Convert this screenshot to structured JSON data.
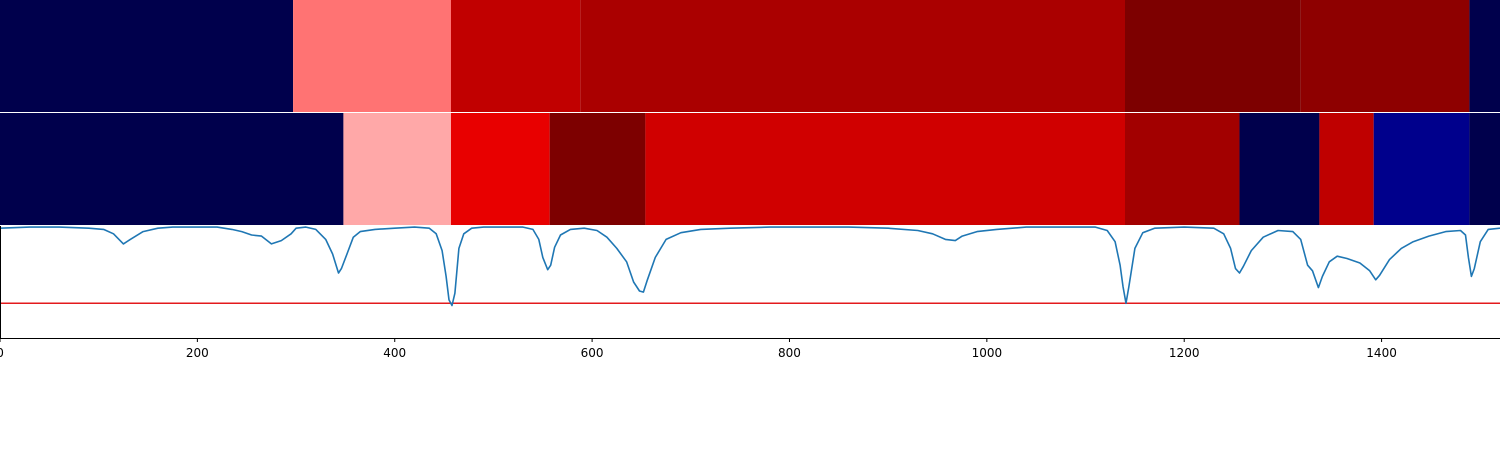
{
  "chart_data": {
    "type": "heatmap",
    "xlim": [
      0,
      1520
    ],
    "xticks": [
      0,
      200,
      400,
      600,
      800,
      1000,
      1200,
      1400
    ],
    "tick_labels": [
      "0",
      "200",
      "400",
      "600",
      "800",
      "1000",
      "1200",
      "1400"
    ],
    "rows": [
      {
        "segments": [
          {
            "start": 0,
            "end": 297,
            "color": "#00004c"
          },
          {
            "start": 297,
            "end": 457,
            "color": "#ff7373"
          },
          {
            "start": 457,
            "end": 588,
            "color": "#c10000"
          },
          {
            "start": 588,
            "end": 1140,
            "color": "#aa0000"
          },
          {
            "start": 1140,
            "end": 1318,
            "color": "#7d0000"
          },
          {
            "start": 1318,
            "end": 1489,
            "color": "#8e0000"
          },
          {
            "start": 1489,
            "end": 1520,
            "color": "#00004c"
          }
        ]
      },
      {
        "segments": [
          {
            "start": 0,
            "end": 348,
            "color": "#00004c"
          },
          {
            "start": 348,
            "end": 457,
            "color": "#ffa8a8"
          },
          {
            "start": 457,
            "end": 557,
            "color": "#e80000"
          },
          {
            "start": 557,
            "end": 654,
            "color": "#7d0000"
          },
          {
            "start": 654,
            "end": 1140,
            "color": "#d00000"
          },
          {
            "start": 1140,
            "end": 1256,
            "color": "#a20000"
          },
          {
            "start": 1256,
            "end": 1337,
            "color": "#00004c"
          },
          {
            "start": 1337,
            "end": 1392,
            "color": "#bf0000"
          },
          {
            "start": 1392,
            "end": 1489,
            "color": "#00008c"
          },
          {
            "start": 1489,
            "end": 1520,
            "color": "#00004c"
          }
        ]
      }
    ],
    "line": {
      "ylim": [
        0,
        1
      ],
      "threshold": 0.31,
      "threshold_color": "#e31a1c",
      "color": "#1f77b4",
      "points": [
        [
          0,
          0.98
        ],
        [
          30,
          0.99
        ],
        [
          60,
          0.99
        ],
        [
          90,
          0.98
        ],
        [
          105,
          0.97
        ],
        [
          115,
          0.93
        ],
        [
          125,
          0.84
        ],
        [
          132,
          0.88
        ],
        [
          145,
          0.95
        ],
        [
          160,
          0.98
        ],
        [
          175,
          0.99
        ],
        [
          200,
          0.99
        ],
        [
          220,
          0.99
        ],
        [
          235,
          0.97
        ],
        [
          245,
          0.95
        ],
        [
          255,
          0.92
        ],
        [
          265,
          0.91
        ],
        [
          275,
          0.84
        ],
        [
          285,
          0.87
        ],
        [
          295,
          0.93
        ],
        [
          300,
          0.98
        ],
        [
          310,
          0.99
        ],
        [
          320,
          0.97
        ],
        [
          330,
          0.88
        ],
        [
          337,
          0.75
        ],
        [
          343,
          0.58
        ],
        [
          346,
          0.62
        ],
        [
          352,
          0.76
        ],
        [
          358,
          0.9
        ],
        [
          365,
          0.95
        ],
        [
          380,
          0.97
        ],
        [
          400,
          0.98
        ],
        [
          420,
          0.99
        ],
        [
          435,
          0.98
        ],
        [
          442,
          0.93
        ],
        [
          448,
          0.78
        ],
        [
          452,
          0.55
        ],
        [
          455,
          0.34
        ],
        [
          458,
          0.29
        ],
        [
          461,
          0.4
        ],
        [
          465,
          0.8
        ],
        [
          470,
          0.93
        ],
        [
          478,
          0.98
        ],
        [
          490,
          0.99
        ],
        [
          510,
          0.99
        ],
        [
          530,
          0.99
        ],
        [
          540,
          0.97
        ],
        [
          546,
          0.88
        ],
        [
          550,
          0.72
        ],
        [
          555,
          0.61
        ],
        [
          558,
          0.65
        ],
        [
          562,
          0.81
        ],
        [
          568,
          0.92
        ],
        [
          578,
          0.97
        ],
        [
          592,
          0.98
        ],
        [
          605,
          0.96
        ],
        [
          615,
          0.9
        ],
        [
          625,
          0.8
        ],
        [
          635,
          0.68
        ],
        [
          642,
          0.5
        ],
        [
          648,
          0.42
        ],
        [
          652,
          0.41
        ],
        [
          656,
          0.52
        ],
        [
          664,
          0.72
        ],
        [
          675,
          0.88
        ],
        [
          690,
          0.94
        ],
        [
          710,
          0.97
        ],
        [
          740,
          0.98
        ],
        [
          780,
          0.99
        ],
        [
          820,
          0.99
        ],
        [
          860,
          0.99
        ],
        [
          900,
          0.98
        ],
        [
          930,
          0.96
        ],
        [
          945,
          0.93
        ],
        [
          958,
          0.88
        ],
        [
          968,
          0.87
        ],
        [
          975,
          0.91
        ],
        [
          990,
          0.95
        ],
        [
          1010,
          0.97
        ],
        [
          1040,
          0.99
        ],
        [
          1080,
          0.99
        ],
        [
          1110,
          0.99
        ],
        [
          1122,
          0.96
        ],
        [
          1130,
          0.86
        ],
        [
          1135,
          0.65
        ],
        [
          1138,
          0.46
        ],
        [
          1141,
          0.31
        ],
        [
          1144,
          0.46
        ],
        [
          1150,
          0.8
        ],
        [
          1158,
          0.94
        ],
        [
          1170,
          0.98
        ],
        [
          1200,
          0.99
        ],
        [
          1230,
          0.98
        ],
        [
          1240,
          0.93
        ],
        [
          1247,
          0.8
        ],
        [
          1252,
          0.62
        ],
        [
          1256,
          0.58
        ],
        [
          1260,
          0.64
        ],
        [
          1268,
          0.78
        ],
        [
          1280,
          0.9
        ],
        [
          1295,
          0.96
        ],
        [
          1310,
          0.95
        ],
        [
          1318,
          0.88
        ],
        [
          1325,
          0.65
        ],
        [
          1330,
          0.6
        ],
        [
          1336,
          0.45
        ],
        [
          1340,
          0.55
        ],
        [
          1347,
          0.68
        ],
        [
          1355,
          0.73
        ],
        [
          1365,
          0.71
        ],
        [
          1378,
          0.67
        ],
        [
          1388,
          0.6
        ],
        [
          1394,
          0.52
        ],
        [
          1398,
          0.56
        ],
        [
          1408,
          0.7
        ],
        [
          1420,
          0.8
        ],
        [
          1432,
          0.86
        ],
        [
          1448,
          0.91
        ],
        [
          1465,
          0.95
        ],
        [
          1480,
          0.96
        ],
        [
          1485,
          0.92
        ],
        [
          1488,
          0.72
        ],
        [
          1491,
          0.55
        ],
        [
          1494,
          0.62
        ],
        [
          1500,
          0.86
        ],
        [
          1508,
          0.97
        ],
        [
          1520,
          0.98
        ]
      ]
    }
  }
}
